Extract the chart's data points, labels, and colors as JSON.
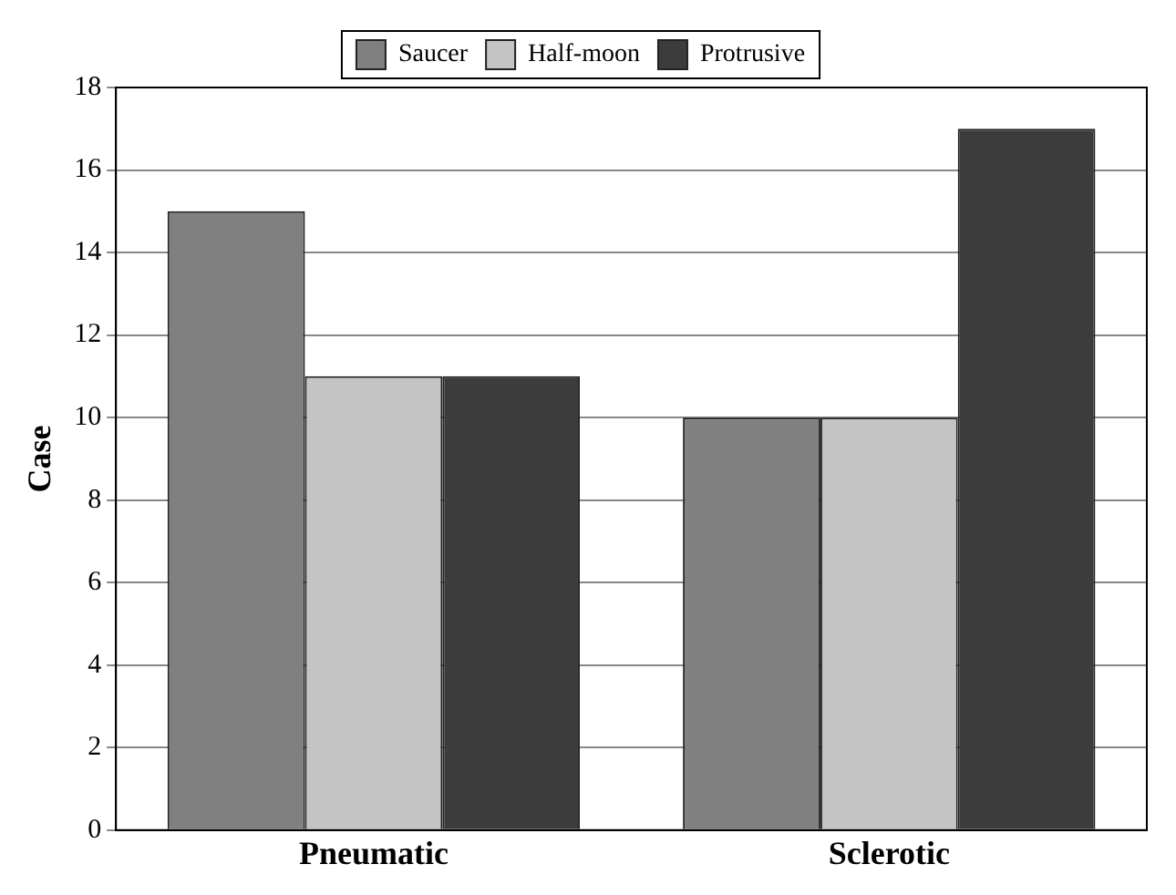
{
  "chart_data": {
    "type": "bar",
    "ylabel": "Case",
    "categories": [
      "Pneumatic",
      "Sclerotic"
    ],
    "series": [
      {
        "name": "Saucer",
        "color": "#808080",
        "values": [
          15,
          10
        ]
      },
      {
        "name": "Half-moon",
        "color": "#c4c4c4",
        "values": [
          11,
          10
        ]
      },
      {
        "name": "Protrusive",
        "color": "#3c3c3c",
        "values": [
          11,
          17
        ]
      }
    ],
    "ylim": [
      0,
      18
    ],
    "yticks": [
      0,
      2,
      4,
      6,
      8,
      10,
      12,
      14,
      16,
      18
    ],
    "grid": "y",
    "legend": "top"
  }
}
